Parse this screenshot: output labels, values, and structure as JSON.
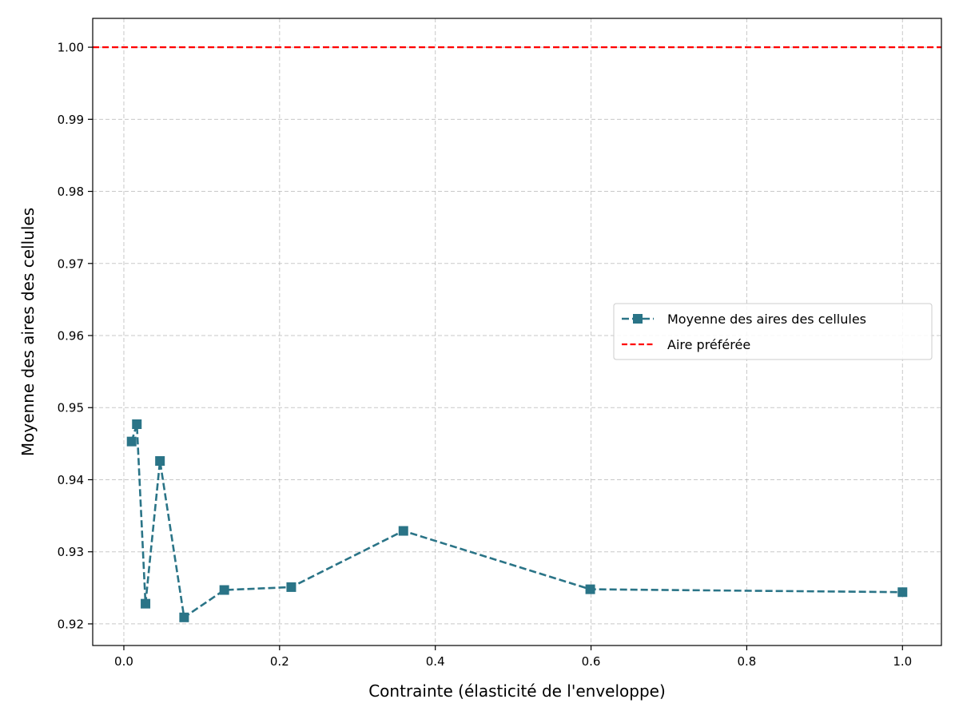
{
  "chart_data": {
    "type": "line",
    "title": "",
    "xlabel": "Contrainte (élasticité de l'enveloppe)",
    "ylabel": "Moyenne des aires des cellules",
    "xlim": [
      -0.04,
      1.05
    ],
    "ylim": [
      0.917,
      1.004
    ],
    "xticks": [
      0.0,
      0.2,
      0.4,
      0.6,
      0.8,
      1.0
    ],
    "xtick_labels": [
      "0.0",
      "0.2",
      "0.4",
      "0.6",
      "0.8",
      "1.0"
    ],
    "yticks": [
      0.92,
      0.93,
      0.94,
      0.95,
      0.96,
      0.97,
      0.98,
      0.99,
      1.0
    ],
    "ytick_labels": [
      "0.92",
      "0.93",
      "0.94",
      "0.95",
      "0.96",
      "0.97",
      "0.98",
      "0.99",
      "1.00"
    ],
    "grid": true,
    "legend_position": "center-right",
    "series": [
      {
        "name": "Moyenne des aires des cellules",
        "color": "#2a7487",
        "linestyle": "dashed",
        "marker": "square",
        "x": [
          0.01,
          0.0167,
          0.0278,
          0.0464,
          0.0774,
          0.129,
          0.215,
          0.359,
          0.599,
          1.0
        ],
        "y": [
          0.9453,
          0.9477,
          0.9228,
          0.9426,
          0.9209,
          0.9247,
          0.9251,
          0.9329,
          0.9248,
          0.9244
        ]
      }
    ],
    "hlines": [
      {
        "name": "Aire préférée",
        "y": 1.0,
        "color": "#ff0000",
        "linestyle": "dashed"
      }
    ]
  }
}
